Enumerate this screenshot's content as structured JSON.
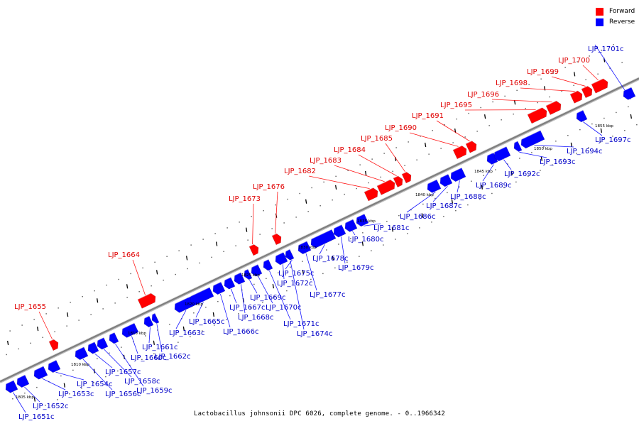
{
  "caption": "Lactobacillus johnsonii DPC 6026, complete genome. - 0..1966342",
  "legend": [
    {
      "label": "Forward",
      "color": "#ff0000"
    },
    {
      "label": "Reverse",
      "color": "#0000ff"
    }
  ],
  "colors": {
    "forward": "#ff0000",
    "reverse": "#0000ff",
    "forward_label": "#e00000",
    "reverse_label": "#0000c8",
    "backbone": "#7f7f7f"
  },
  "scale_labels": [
    "1805 kbp",
    "1810 kbp",
    "1815 kbp",
    "1820 kbp",
    "1825 kbp",
    "1830 kbp",
    "1835 kbp",
    "1840 kbp",
    "1845 kbp",
    "1850 kbp",
    "1855 kbp"
  ],
  "genes": [
    {
      "label": "LJP_1651c",
      "strand": "reverse"
    },
    {
      "label": "LJP_1652c",
      "strand": "reverse"
    },
    {
      "label": "LJP_1653c",
      "strand": "reverse"
    },
    {
      "label": "LJP_1654c",
      "strand": "reverse"
    },
    {
      "label": "LJP_1655",
      "strand": "forward"
    },
    {
      "label": "LJP_1656c",
      "strand": "reverse"
    },
    {
      "label": "LJP_1657c",
      "strand": "reverse"
    },
    {
      "label": "LJP_1658c",
      "strand": "reverse"
    },
    {
      "label": "LJP_1659c",
      "strand": "reverse"
    },
    {
      "label": "LJP_1660c",
      "strand": "reverse"
    },
    {
      "label": "LJP_1661c",
      "strand": "reverse"
    },
    {
      "label": "LJP_1662c",
      "strand": "reverse"
    },
    {
      "label": "LJP_1663c",
      "strand": "reverse"
    },
    {
      "label": "LJP_1664",
      "strand": "forward"
    },
    {
      "label": "LJP_1665c",
      "strand": "reverse"
    },
    {
      "label": "LJP_1666c",
      "strand": "reverse"
    },
    {
      "label": "LJP_1667c",
      "strand": "reverse"
    },
    {
      "label": "LJP_1668c",
      "strand": "reverse"
    },
    {
      "label": "LJP_1669c",
      "strand": "reverse"
    },
    {
      "label": "LJP_1670c",
      "strand": "reverse"
    },
    {
      "label": "LJP_1671c",
      "strand": "reverse"
    },
    {
      "label": "LJP_1672c",
      "strand": "reverse"
    },
    {
      "label": "LJP_1673",
      "strand": "forward"
    },
    {
      "label": "LJP_1674c",
      "strand": "reverse"
    },
    {
      "label": "LJP_1675c",
      "strand": "reverse"
    },
    {
      "label": "LJP_1676",
      "strand": "forward"
    },
    {
      "label": "LJP_1677c",
      "strand": "reverse"
    },
    {
      "label": "LJP_1678c",
      "strand": "reverse"
    },
    {
      "label": "LJP_1679c",
      "strand": "reverse"
    },
    {
      "label": "LJP_1680c",
      "strand": "reverse"
    },
    {
      "label": "LJP_1681c",
      "strand": "reverse"
    },
    {
      "label": "LJP_1682",
      "strand": "forward"
    },
    {
      "label": "LJP_1683",
      "strand": "forward"
    },
    {
      "label": "LJP_1684",
      "strand": "forward"
    },
    {
      "label": "LJP_1685",
      "strand": "forward"
    },
    {
      "label": "LJP_1686c",
      "strand": "reverse"
    },
    {
      "label": "LJP_1687c",
      "strand": "reverse"
    },
    {
      "label": "LJP_1688c",
      "strand": "reverse"
    },
    {
      "label": "LJP_1689c",
      "strand": "reverse"
    },
    {
      "label": "LJP_1690",
      "strand": "forward"
    },
    {
      "label": "LJP_1691",
      "strand": "forward"
    },
    {
      "label": "LJP_1692c",
      "strand": "reverse"
    },
    {
      "label": "LJP_1693c",
      "strand": "reverse"
    },
    {
      "label": "LJP_1694c",
      "strand": "reverse"
    },
    {
      "label": "LJP_1695",
      "strand": "forward"
    },
    {
      "label": "LJP_1696",
      "strand": "forward"
    },
    {
      "label": "LJP_1697c",
      "strand": "reverse"
    },
    {
      "label": "LJP_1698",
      "strand": "forward"
    },
    {
      "label": "LJP_1699",
      "strand": "forward"
    },
    {
      "label": "LJP_1700",
      "strand": "forward"
    },
    {
      "label": "LJP_1701c",
      "strand": "reverse"
    }
  ]
}
